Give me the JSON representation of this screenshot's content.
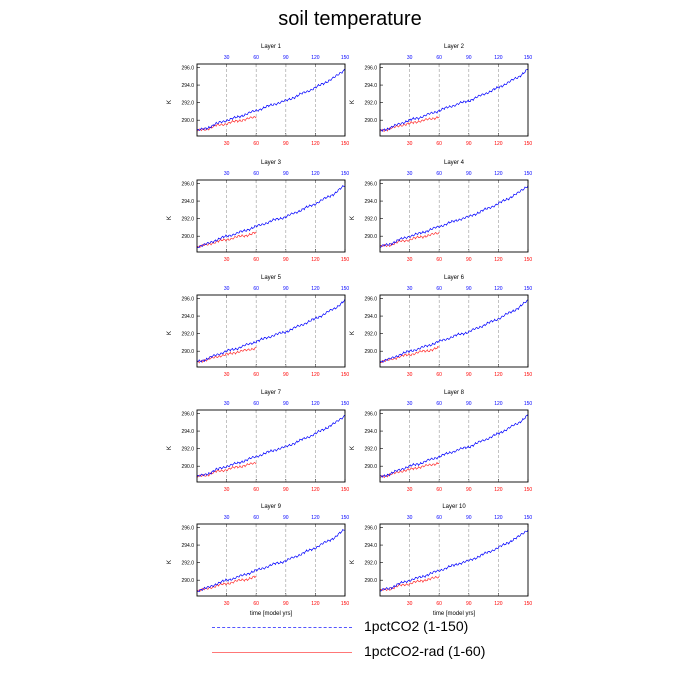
{
  "figure": {
    "title": "soil temperature",
    "legend": [
      {
        "label": "1pctCO2 (1-150)",
        "color": "#4444ff",
        "style": "dashed"
      },
      {
        "label": "1pctCO2-rad (1-60)",
        "color": "#ff6666",
        "style": "solid"
      }
    ],
    "colors": {
      "series_blue": "#0000ff",
      "series_red": "#ff3333",
      "top_ticks": "#0000ff",
      "bottom_ticks": "#ff0000"
    }
  },
  "chart_data": [
    {
      "type": "line",
      "title": "Layer 1",
      "ylabel": "K",
      "ylim": [
        288.2,
        296.4
      ],
      "xlim": [
        0,
        150
      ],
      "top_ticks": [
        30,
        60,
        90,
        120,
        150
      ],
      "bottom_ticks": [
        30,
        60,
        90,
        120,
        150
      ],
      "yticks": [
        290,
        292,
        294,
        296
      ],
      "ytick_labels": [
        "290.0",
        "292.0",
        "294.0",
        "296.0"
      ],
      "vlines": [
        30,
        60,
        90,
        120
      ],
      "series": [
        {
          "name": "1pctCO2 (1-150)",
          "x": [
            0,
            10,
            20,
            30,
            40,
            50,
            60,
            70,
            80,
            90,
            100,
            110,
            120,
            130,
            140,
            150
          ],
          "values": [
            288.8,
            289.1,
            289.6,
            290.0,
            290.3,
            290.7,
            291.1,
            291.5,
            291.9,
            292.2,
            292.7,
            293.2,
            293.7,
            294.3,
            294.9,
            295.8
          ]
        },
        {
          "name": "1pctCO2-rad (1-60)",
          "x": [
            0,
            10,
            20,
            30,
            40,
            50,
            60
          ],
          "values": [
            288.8,
            289.0,
            289.4,
            289.6,
            289.9,
            290.1,
            290.4
          ]
        }
      ]
    },
    {
      "type": "line",
      "title": "Layer 2",
      "ylabel": "K",
      "ylim": [
        288.2,
        296.4
      ],
      "xlim": [
        0,
        150
      ],
      "top_ticks": [
        30,
        60,
        90,
        120,
        150
      ],
      "bottom_ticks": [
        30,
        60,
        90,
        120,
        150
      ],
      "yticks": [
        290,
        292,
        294,
        296
      ],
      "ytick_labels": [
        "290.0",
        "292.0",
        "294.0",
        "296.0"
      ],
      "vlines": [
        30,
        60,
        90,
        120
      ],
      "series": [
        {
          "name": "1pctCO2 (1-150)",
          "x": [
            0,
            10,
            20,
            30,
            40,
            50,
            60,
            70,
            80,
            90,
            100,
            110,
            120,
            130,
            140,
            150
          ],
          "values": [
            288.8,
            289.1,
            289.6,
            290.0,
            290.3,
            290.7,
            291.1,
            291.5,
            291.9,
            292.2,
            292.7,
            293.2,
            293.7,
            294.3,
            294.9,
            295.8
          ]
        },
        {
          "name": "1pctCO2-rad (1-60)",
          "x": [
            0,
            10,
            20,
            30,
            40,
            50,
            60
          ],
          "values": [
            288.8,
            289.0,
            289.4,
            289.6,
            289.9,
            290.1,
            290.4
          ]
        }
      ]
    },
    {
      "type": "line",
      "title": "Layer 3",
      "ylabel": "K",
      "ylim": [
        288.2,
        296.4
      ],
      "xlim": [
        0,
        150
      ],
      "top_ticks": [
        30,
        60,
        90,
        120,
        150
      ],
      "bottom_ticks": [
        30,
        60,
        90,
        120,
        150
      ],
      "yticks": [
        290,
        292,
        294,
        296
      ],
      "ytick_labels": [
        "290.0",
        "292.0",
        "294.0",
        "296.0"
      ],
      "vlines": [
        30,
        60,
        90,
        120
      ],
      "series": [
        {
          "name": "1pctCO2 (1-150)",
          "x": [
            0,
            10,
            20,
            30,
            40,
            50,
            60,
            70,
            80,
            90,
            100,
            110,
            120,
            130,
            140,
            150
          ],
          "values": [
            288.8,
            289.1,
            289.6,
            290.0,
            290.3,
            290.7,
            291.1,
            291.5,
            291.9,
            292.2,
            292.7,
            293.2,
            293.7,
            294.3,
            294.9,
            295.8
          ]
        },
        {
          "name": "1pctCO2-rad (1-60)",
          "x": [
            0,
            10,
            20,
            30,
            40,
            50,
            60
          ],
          "values": [
            288.8,
            289.0,
            289.4,
            289.6,
            289.9,
            290.1,
            290.4
          ]
        }
      ]
    },
    {
      "type": "line",
      "title": "Layer 4",
      "ylabel": "K",
      "ylim": [
        288.2,
        296.4
      ],
      "xlim": [
        0,
        150
      ],
      "top_ticks": [
        30,
        60,
        90,
        120,
        150
      ],
      "bottom_ticks": [
        30,
        60,
        90,
        120,
        150
      ],
      "yticks": [
        290,
        292,
        294,
        296
      ],
      "ytick_labels": [
        "290.0",
        "292.0",
        "294.0",
        "296.0"
      ],
      "vlines": [
        30,
        60,
        90,
        120
      ],
      "series": [
        {
          "name": "1pctCO2 (1-150)",
          "x": [
            0,
            10,
            20,
            30,
            40,
            50,
            60,
            70,
            80,
            90,
            100,
            110,
            120,
            130,
            140,
            150
          ],
          "values": [
            288.8,
            289.1,
            289.6,
            290.0,
            290.3,
            290.7,
            291.1,
            291.5,
            291.9,
            292.2,
            292.7,
            293.2,
            293.7,
            294.3,
            294.9,
            295.8
          ]
        },
        {
          "name": "1pctCO2-rad (1-60)",
          "x": [
            0,
            10,
            20,
            30,
            40,
            50,
            60
          ],
          "values": [
            288.8,
            289.0,
            289.4,
            289.6,
            289.9,
            290.1,
            290.4
          ]
        }
      ]
    },
    {
      "type": "line",
      "title": "Layer 5",
      "ylabel": "K",
      "ylim": [
        288.2,
        296.4
      ],
      "xlim": [
        0,
        150
      ],
      "top_ticks": [
        30,
        60,
        90,
        120,
        150
      ],
      "bottom_ticks": [
        30,
        60,
        90,
        120,
        150
      ],
      "yticks": [
        290,
        292,
        294,
        296
      ],
      "ytick_labels": [
        "290.0",
        "292.0",
        "294.0",
        "296.0"
      ],
      "vlines": [
        30,
        60,
        90,
        120
      ],
      "series": [
        {
          "name": "1pctCO2 (1-150)",
          "x": [
            0,
            10,
            20,
            30,
            40,
            50,
            60,
            70,
            80,
            90,
            100,
            110,
            120,
            130,
            140,
            150
          ],
          "values": [
            288.8,
            289.1,
            289.6,
            290.0,
            290.3,
            290.7,
            291.1,
            291.5,
            291.9,
            292.2,
            292.7,
            293.2,
            293.7,
            294.3,
            294.9,
            295.8
          ]
        },
        {
          "name": "1pctCO2-rad (1-60)",
          "x": [
            0,
            10,
            20,
            30,
            40,
            50,
            60
          ],
          "values": [
            288.8,
            289.0,
            289.4,
            289.6,
            289.9,
            290.1,
            290.4
          ]
        }
      ]
    },
    {
      "type": "line",
      "title": "Layer 6",
      "ylabel": "K",
      "ylim": [
        288.2,
        296.4
      ],
      "xlim": [
        0,
        150
      ],
      "top_ticks": [
        30,
        60,
        90,
        120,
        150
      ],
      "bottom_ticks": [
        30,
        60,
        90,
        120,
        150
      ],
      "yticks": [
        290,
        292,
        294,
        296
      ],
      "ytick_labels": [
        "290.0",
        "292.0",
        "294.0",
        "296.0"
      ],
      "vlines": [
        30,
        60,
        90,
        120
      ],
      "series": [
        {
          "name": "1pctCO2 (1-150)",
          "x": [
            0,
            10,
            20,
            30,
            40,
            50,
            60,
            70,
            80,
            90,
            100,
            110,
            120,
            130,
            140,
            150
          ],
          "values": [
            288.8,
            289.1,
            289.6,
            290.0,
            290.3,
            290.7,
            291.1,
            291.5,
            291.9,
            292.2,
            292.7,
            293.2,
            293.7,
            294.3,
            294.9,
            295.8
          ]
        },
        {
          "name": "1pctCO2-rad (1-60)",
          "x": [
            0,
            10,
            20,
            30,
            40,
            50,
            60
          ],
          "values": [
            288.8,
            289.0,
            289.4,
            289.6,
            289.9,
            290.1,
            290.4
          ]
        }
      ]
    },
    {
      "type": "line",
      "title": "Layer 7",
      "ylabel": "K",
      "ylim": [
        288.2,
        296.4
      ],
      "xlim": [
        0,
        150
      ],
      "top_ticks": [
        30,
        60,
        90,
        120,
        150
      ],
      "bottom_ticks": [
        30,
        60,
        90,
        120,
        150
      ],
      "yticks": [
        290,
        292,
        294,
        296
      ],
      "ytick_labels": [
        "290.0",
        "292.0",
        "294.0",
        "296.0"
      ],
      "vlines": [
        30,
        60,
        90,
        120
      ],
      "series": [
        {
          "name": "1pctCO2 (1-150)",
          "x": [
            0,
            10,
            20,
            30,
            40,
            50,
            60,
            70,
            80,
            90,
            100,
            110,
            120,
            130,
            140,
            150
          ],
          "values": [
            288.8,
            289.1,
            289.6,
            290.0,
            290.3,
            290.7,
            291.1,
            291.5,
            291.9,
            292.2,
            292.7,
            293.2,
            293.7,
            294.3,
            294.9,
            295.8
          ]
        },
        {
          "name": "1pctCO2-rad (1-60)",
          "x": [
            0,
            10,
            20,
            30,
            40,
            50,
            60
          ],
          "values": [
            288.8,
            289.0,
            289.4,
            289.6,
            289.9,
            290.1,
            290.4
          ]
        }
      ]
    },
    {
      "type": "line",
      "title": "Layer 8",
      "ylabel": "K",
      "ylim": [
        288.2,
        296.4
      ],
      "xlim": [
        0,
        150
      ],
      "top_ticks": [
        30,
        60,
        90,
        120,
        150
      ],
      "bottom_ticks": [
        30,
        60,
        90,
        120,
        150
      ],
      "yticks": [
        290,
        292,
        294,
        296
      ],
      "ytick_labels": [
        "290.0",
        "292.0",
        "294.0",
        "296.0"
      ],
      "vlines": [
        30,
        60,
        90,
        120
      ],
      "series": [
        {
          "name": "1pctCO2 (1-150)",
          "x": [
            0,
            10,
            20,
            30,
            40,
            50,
            60,
            70,
            80,
            90,
            100,
            110,
            120,
            130,
            140,
            150
          ],
          "values": [
            288.8,
            289.1,
            289.6,
            290.0,
            290.3,
            290.7,
            291.1,
            291.5,
            291.9,
            292.2,
            292.7,
            293.2,
            293.7,
            294.3,
            294.9,
            295.8
          ]
        },
        {
          "name": "1pctCO2-rad (1-60)",
          "x": [
            0,
            10,
            20,
            30,
            40,
            50,
            60
          ],
          "values": [
            288.8,
            289.0,
            289.4,
            289.6,
            289.9,
            290.1,
            290.4
          ]
        }
      ]
    },
    {
      "type": "line",
      "title": "Layer 9",
      "ylabel": "K",
      "xlabel": "time [model yrs]",
      "ylim": [
        288.2,
        296.4
      ],
      "xlim": [
        0,
        150
      ],
      "top_ticks": [
        30,
        60,
        90,
        120,
        150
      ],
      "bottom_ticks": [
        30,
        60,
        90,
        120,
        150
      ],
      "yticks": [
        290,
        292,
        294,
        296
      ],
      "ytick_labels": [
        "290.0",
        "292.0",
        "294.0",
        "296.0"
      ],
      "vlines": [
        30,
        60,
        90,
        120
      ],
      "series": [
        {
          "name": "1pctCO2 (1-150)",
          "x": [
            0,
            10,
            20,
            30,
            40,
            50,
            60,
            70,
            80,
            90,
            100,
            110,
            120,
            130,
            140,
            150
          ],
          "values": [
            288.8,
            289.1,
            289.6,
            290.0,
            290.3,
            290.7,
            291.1,
            291.5,
            291.9,
            292.2,
            292.7,
            293.2,
            293.7,
            294.3,
            294.9,
            295.8
          ]
        },
        {
          "name": "1pctCO2-rad (1-60)",
          "x": [
            0,
            10,
            20,
            30,
            40,
            50,
            60
          ],
          "values": [
            288.8,
            289.0,
            289.4,
            289.6,
            289.9,
            290.1,
            290.4
          ]
        }
      ]
    },
    {
      "type": "line",
      "title": "Layer 10",
      "ylabel": "K",
      "xlabel": "time [model yrs]",
      "ylim": [
        288.2,
        296.4
      ],
      "xlim": [
        0,
        150
      ],
      "top_ticks": [
        30,
        60,
        90,
        120,
        150
      ],
      "bottom_ticks": [
        30,
        60,
        90,
        120,
        150
      ],
      "yticks": [
        290,
        292,
        294,
        296
      ],
      "ytick_labels": [
        "290.0",
        "292.0",
        "294.0",
        "296.0"
      ],
      "vlines": [
        30,
        60,
        90,
        120
      ],
      "series": [
        {
          "name": "1pctCO2 (1-150)",
          "x": [
            0,
            10,
            20,
            30,
            40,
            50,
            60,
            70,
            80,
            90,
            100,
            110,
            120,
            130,
            140,
            150
          ],
          "values": [
            288.8,
            289.1,
            289.6,
            290.0,
            290.3,
            290.7,
            291.1,
            291.5,
            291.9,
            292.2,
            292.7,
            293.2,
            293.7,
            294.3,
            294.9,
            295.8
          ]
        },
        {
          "name": "1pctCO2-rad (1-60)",
          "x": [
            0,
            10,
            20,
            30,
            40,
            50,
            60
          ],
          "values": [
            288.8,
            289.0,
            289.4,
            289.6,
            289.9,
            290.1,
            290.4
          ]
        }
      ]
    }
  ]
}
